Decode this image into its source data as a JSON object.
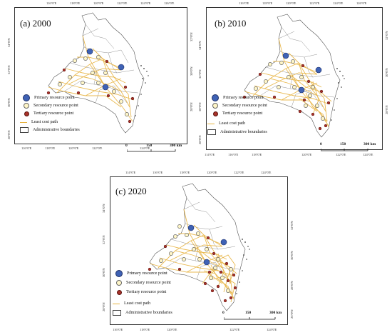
{
  "panels": [
    {
      "title": "(a) 2000",
      "top_ticks": [
        "116°0'E",
        "118°0'E",
        "120°0'E",
        "122°0'E",
        "124°0'E",
        "126°0'E"
      ],
      "bottom_ticks": [
        "116°0'E",
        "118°0'E",
        "120°0'E",
        "122°0'E",
        "124°0'E"
      ],
      "left_ticks": [
        "34°0'N",
        "32°0'N",
        "30°0'N",
        "28°0'N"
      ],
      "right_ticks": [
        "32°0'N",
        "30°0'N",
        "28°0'N"
      ],
      "scale": {
        "labels": [
          "0",
          "150",
          "300 km"
        ]
      }
    },
    {
      "title": "(b) 2010",
      "top_ticks": [
        "116°0'E",
        "118°0'E",
        "120°0'E",
        "122°0'E",
        "124°0'E",
        "126°0'E"
      ],
      "bottom_ticks": [
        "114°0'E",
        "116°0'E",
        "118°0'E",
        "120°0'E",
        "122°0'E",
        "124°0'E"
      ],
      "left_ticks": [
        "34°0'N",
        "32°0'N",
        "30°0'N",
        "28°0'N"
      ],
      "right_ticks": [
        "32°0'N",
        "30°0'N",
        "28°0'N"
      ],
      "scale": {
        "labels": [
          "0",
          "150",
          "300 km"
        ]
      }
    },
    {
      "title": "(c) 2020",
      "top_ticks": [
        "114°0'E",
        "116°0'E",
        "118°0'E",
        "120°0'E",
        "122°0'E",
        "124°0'E"
      ],
      "bottom_ticks": [
        "116°0'E",
        "118°0'E",
        "120°0'E",
        "122°0'E",
        "124°0'E"
      ],
      "left_ticks": [
        "34°0'N",
        "32°0'N",
        "30°0'N",
        "28°0'N"
      ],
      "right_ticks": [
        "32°0'N",
        "30°0'N",
        "28°0'N",
        "26°0'N"
      ],
      "scale": {
        "labels": [
          "0",
          "150",
          "300 km"
        ]
      }
    }
  ],
  "legend": {
    "primary": "Primary resource point",
    "secondary": "Secondary resource point",
    "tertiary": "Tertiary resource point",
    "path": "Least cost path",
    "admin": "Administrative boundaries"
  },
  "colors": {
    "primary": "#3f62b5",
    "secondary": "#fff6c7",
    "tertiary": "#a8322a",
    "path": "#e7b341",
    "boundary": "#444444"
  }
}
